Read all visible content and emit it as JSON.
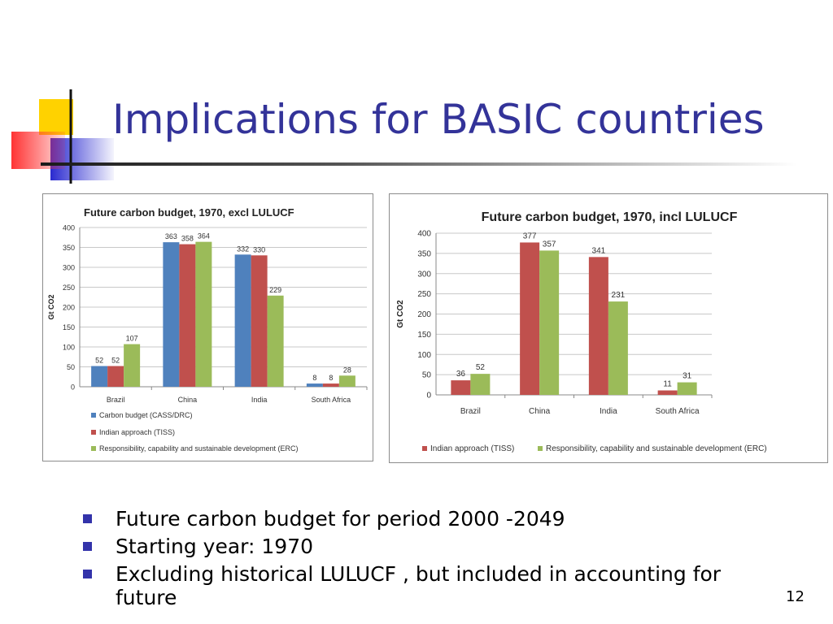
{
  "slide": {
    "title": "Implications for BASIC countries",
    "page_number": "12",
    "bullets": [
      "Future carbon budget for period 2000 -2049",
      "Starting year: 1970",
      "Excluding historical LULUCF , but included in accounting for future"
    ]
  },
  "colors": {
    "title": "#333399",
    "blue": "#4f81bd",
    "red": "#c0504d",
    "green": "#9bbb59",
    "bullet": "#3333aa"
  },
  "chart_data": [
    {
      "type": "bar",
      "title": "Future carbon budget, 1970, excl LULUCF",
      "ylabel": "Gt CO2",
      "xlabel": "",
      "ylim": [
        0,
        400
      ],
      "yticks": [
        0,
        50,
        100,
        150,
        200,
        250,
        300,
        350,
        400
      ],
      "grid": true,
      "legend_position": "bottom",
      "categories": [
        "Brazil",
        "China",
        "India",
        "South Africa"
      ],
      "series": [
        {
          "name": "Carbon budget (CASS/DRC)",
          "color": "#4f81bd",
          "values": [
            52,
            363,
            332,
            8
          ],
          "labels": [
            "52",
            "363",
            "332",
            "8"
          ]
        },
        {
          "name": "Indian approach (TISS)",
          "color": "#c0504d",
          "values": [
            52,
            358,
            330,
            8
          ],
          "labels": [
            "52",
            "358",
            "330",
            "8"
          ]
        },
        {
          "name": "Responsibility, capability and sustainable development (ERC)",
          "color": "#9bbb59",
          "values": [
            107,
            364,
            229,
            28
          ],
          "labels": [
            "107",
            "364",
            "229",
            "28"
          ]
        }
      ]
    },
    {
      "type": "bar",
      "title": "Future carbon budget, 1970, incl LULUCF",
      "ylabel": "Gt CO2",
      "xlabel": "",
      "ylim": [
        0,
        400
      ],
      "yticks": [
        0,
        50,
        100,
        150,
        200,
        250,
        300,
        350,
        400
      ],
      "grid": true,
      "legend_position": "bottom",
      "categories": [
        "Brazil",
        "China",
        "India",
        "South Africa"
      ],
      "series": [
        {
          "name": "Indian approach (TISS)",
          "color": "#c0504d",
          "values": [
            36,
            377,
            341,
            11
          ],
          "labels": [
            "36",
            "377",
            "341",
            "11"
          ]
        },
        {
          "name": "Responsibility, capability and sustainable development (ERC)",
          "color": "#9bbb59",
          "values": [
            52,
            357,
            231,
            31
          ],
          "labels": [
            "52",
            "357",
            "231",
            "31"
          ]
        }
      ]
    }
  ]
}
